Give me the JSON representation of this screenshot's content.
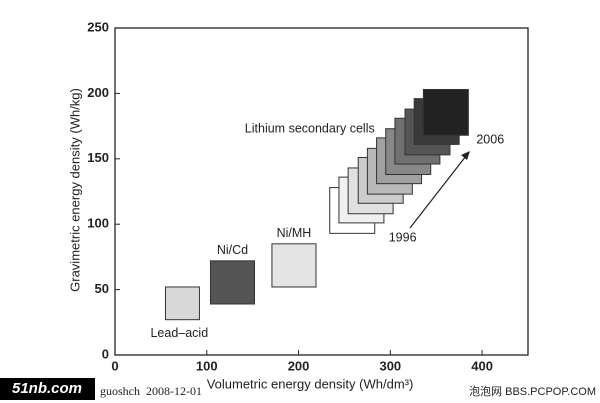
{
  "chart_data": {
    "type": "region",
    "xlabel": "Volumetric energy density (Wh/dm³)",
    "ylabel": "Gravimetric energy density (Wh/kg)",
    "xlim": [
      0,
      450
    ],
    "ylim": [
      0,
      250
    ],
    "xticks": [
      0,
      100,
      200,
      300,
      400
    ],
    "yticks": [
      0,
      50,
      100,
      150,
      200,
      250
    ],
    "grid": false,
    "regions": [
      {
        "name": "Lead–acid",
        "x": [
          55,
          92
        ],
        "y": [
          27,
          52
        ],
        "color": "#d8d8d8"
      },
      {
        "name": "Ni/Cd",
        "x": [
          104,
          152
        ],
        "y": [
          39,
          72
        ],
        "color": "#555555"
      },
      {
        "name": "Ni/MH",
        "x": [
          171,
          219
        ],
        "y": [
          52,
          85
        ],
        "color": "#e4e4e4"
      }
    ],
    "lithium": {
      "name": "Lithium secondary cells",
      "start": "1996",
      "end": "2006",
      "boxes": [
        {
          "x": [
            234,
            283
          ],
          "y": [
            93,
            128
          ],
          "color": "#ffffff"
        },
        {
          "x": [
            244,
            293
          ],
          "y": [
            101,
            136
          ],
          "color": "#f0f0f0"
        },
        {
          "x": [
            254,
            303
          ],
          "y": [
            108,
            143
          ],
          "color": "#e0e0e0"
        },
        {
          "x": [
            265,
            314
          ],
          "y": [
            116,
            151
          ],
          "color": "#cccccc"
        },
        {
          "x": [
            275,
            324
          ],
          "y": [
            123,
            158
          ],
          "color": "#b8b8b8"
        },
        {
          "x": [
            285,
            334
          ],
          "y": [
            131,
            166
          ],
          "color": "#a0a0a0"
        },
        {
          "x": [
            295,
            344
          ],
          "y": [
            138,
            173
          ],
          "color": "#888888"
        },
        {
          "x": [
            305,
            354
          ],
          "y": [
            146,
            181
          ],
          "color": "#707070"
        },
        {
          "x": [
            316,
            365
          ],
          "y": [
            153,
            188
          ],
          "color": "#555555"
        },
        {
          "x": [
            326,
            375
          ],
          "y": [
            161,
            196
          ],
          "color": "#3a3a3a"
        },
        {
          "x": [
            336,
            385
          ],
          "y": [
            168,
            203
          ],
          "color": "#222222"
        }
      ]
    }
  },
  "watermarks": [
    "51nb.com",
    "guoshch  2008-12-01",
    "泡泡网 BBS.PCPOP.COM"
  ]
}
